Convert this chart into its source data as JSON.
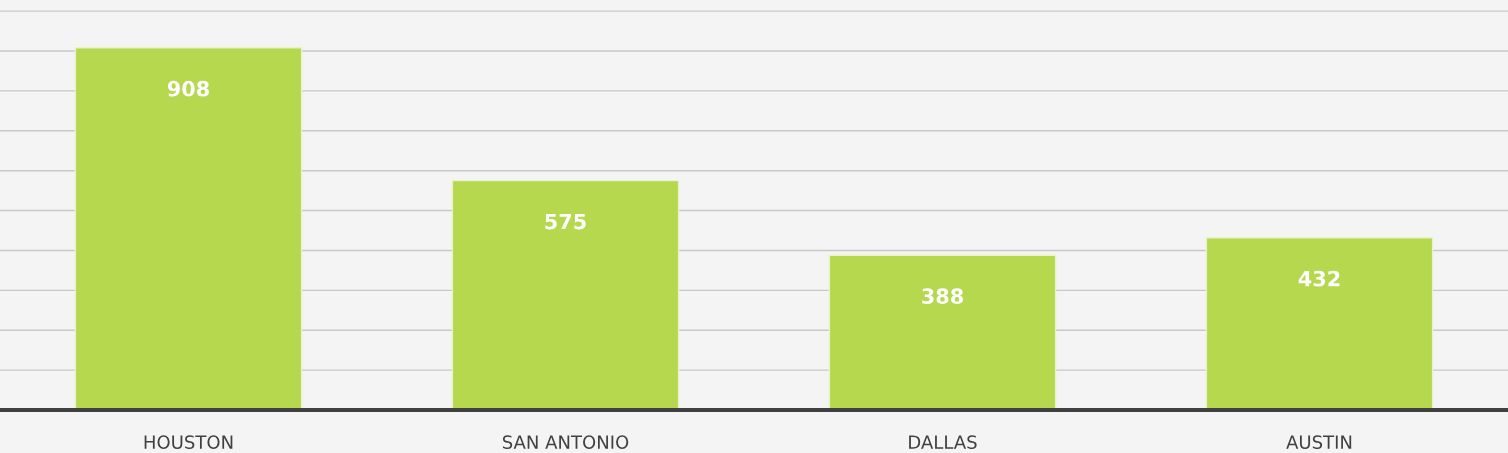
{
  "chart_data": {
    "type": "bar",
    "categories": [
      "HOUSTON",
      "SAN ANTONIO",
      "DALLAS",
      "AUSTIN"
    ],
    "values": [
      908,
      575,
      388,
      432
    ],
    "color": "#b5d84f",
    "data_labels": true,
    "ylim": [
      0,
      1028
    ],
    "yticks": [
      {
        "value": 0,
        "label": null
      },
      {
        "value": 100,
        "label": null
      },
      {
        "value": 200,
        "label": null
      },
      {
        "value": 300,
        "label": null
      },
      {
        "value": 400,
        "label": null
      },
      {
        "value": 500,
        "label": null
      },
      {
        "value": 600,
        "label": null
      },
      {
        "value": 700,
        "label": null
      },
      {
        "value": 800,
        "label": null
      },
      {
        "value": 900,
        "label": null
      },
      {
        "value": 1000,
        "label": null
      }
    ],
    "tick_labels": "x",
    "grid": "y",
    "legend": false
  }
}
